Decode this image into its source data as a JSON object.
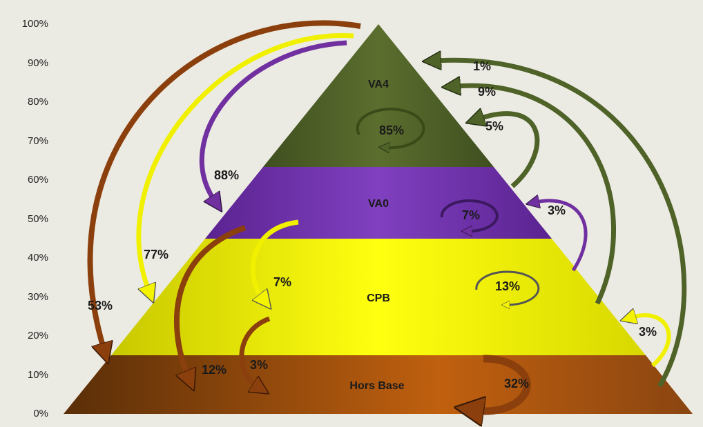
{
  "axis": {
    "ticks": [
      "100%",
      "90%",
      "80%",
      "70%",
      "60%",
      "50%",
      "40%",
      "30%",
      "20%",
      "10%",
      "0%"
    ]
  },
  "layers": [
    "VA4",
    "VA0",
    "CPB",
    "Hors Base"
  ],
  "loop_labels": [
    "85%",
    "7%",
    "13%",
    "32%"
  ],
  "flow_labels": [
    "1%",
    "9%",
    "5%",
    "3%",
    "3%",
    "88%",
    "77%",
    "53%",
    "7%",
    "12%",
    "3%"
  ]
}
